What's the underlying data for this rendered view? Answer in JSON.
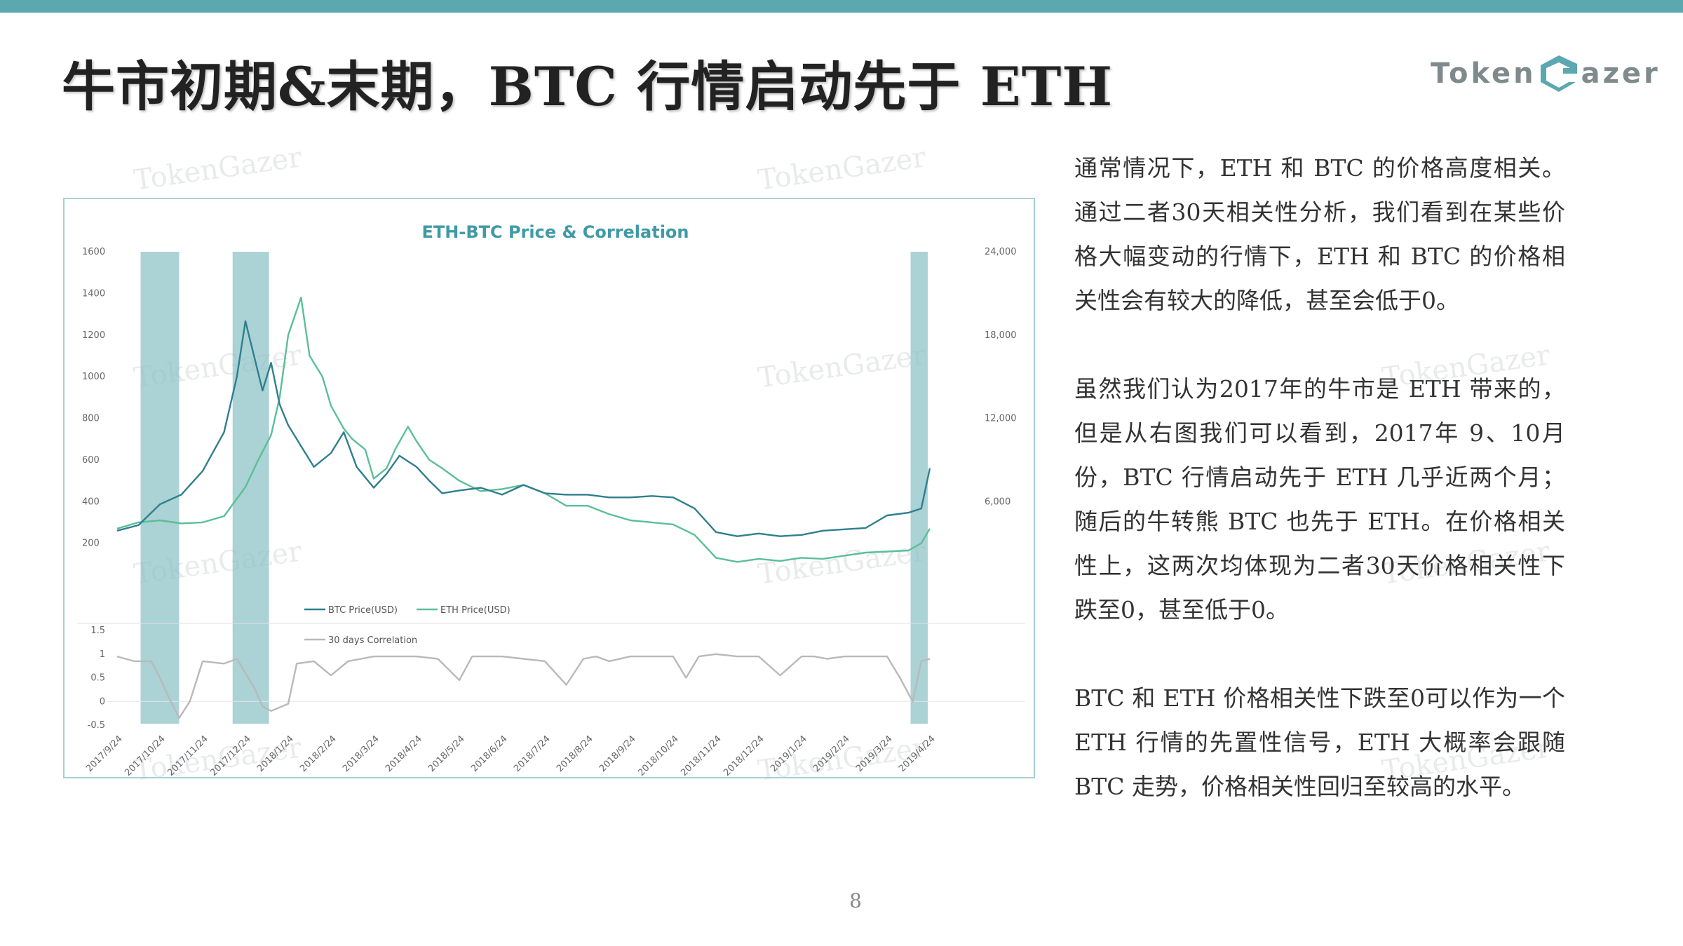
{
  "page": {
    "title": "牛市初期&末期，BTC 行情启动先于 ETH",
    "logo_left": "Token",
    "logo_right": "azer",
    "watermark": "TokenGazer",
    "page_number": "8",
    "colors": {
      "accent_bar": "#5ba8b0",
      "btc": "#2e7f8f",
      "eth": "#5bbf97",
      "corr": "#b9b9b9",
      "band": "#8fc3c7"
    }
  },
  "text": {
    "paragraphs": [
      "通常情况下，ETH 和 BTC 的价格高度相关。通过二者30天相关性分析，我们看到在某些价格大幅变动的行情下，ETH 和 BTC 的价格相关性会有较大的降低，甚至会低于0。",
      "虽然我们认为2017年的牛市是 ETH 带来的，但是从右图我们可以看到，2017年 9、10月份，BTC 行情启动先于 ETH 几乎近两个月；随后的牛转熊 BTC 也先于 ETH。在价格相关性上，这两次均体现为二者30天价格相关性下跌至0，甚至低于0。",
      "BTC 和 ETH 价格相关性下跌至0可以作为一个 ETH 行情的先置性信号，ETH 大概率会跟随 BTC 走势，价格相关性回归至较高的水平。"
    ]
  },
  "chart_data": {
    "type": "line",
    "title": "ETH-BTC Price & Correlation",
    "x_tick_labels": [
      "2017/9/24",
      "2017/10/24",
      "2017/11/24",
      "2017/12/24",
      "2018/1/24",
      "2018/2/24",
      "2018/3/24",
      "2018/4/24",
      "2018/5/24",
      "2018/6/24",
      "2018/7/24",
      "2018/8/24",
      "2018/9/24",
      "2018/10/24",
      "2018/11/24",
      "2018/12/24",
      "2019/1/24",
      "2019/2/24",
      "2019/3/24",
      "2019/4/24"
    ],
    "y_left_ticks": [
      "1600",
      "1400",
      "1200",
      "1000",
      "800",
      "600",
      "400",
      "200"
    ],
    "y_right_ticks": [
      "24,000",
      "18,000",
      "12,000",
      "6,000"
    ],
    "y_corr_ticks": [
      "1.5",
      "1",
      "0.5",
      "0",
      "-0.5"
    ],
    "ylim_left": [
      0,
      1600
    ],
    "ylim_right": [
      0,
      24000
    ],
    "ylim_corr": [
      -0.5,
      1.5
    ],
    "legend": [
      "BTC Price(USD)",
      "ETH Price(USD)",
      "30 days Correlation"
    ],
    "highlight_ranges": [
      [
        0.55,
        1.45
      ],
      [
        2.7,
        3.55
      ],
      [
        18.55,
        18.95
      ]
    ],
    "series": [
      {
        "name": "ETH Price(USD)",
        "axis": "left",
        "x": [
          0,
          0.5,
          1,
          1.5,
          2,
          2.5,
          3,
          3.3,
          3.6,
          3.8,
          4,
          4.3,
          4.5,
          4.8,
          5,
          5.3,
          5.5,
          5.8,
          6,
          6.3,
          6.5,
          6.8,
          7,
          7.3,
          7.6,
          8,
          8.5,
          9,
          9.5,
          10,
          10.5,
          11,
          11.5,
          12,
          12.5,
          13,
          13.5,
          14,
          14.5,
          15,
          15.5,
          16,
          16.5,
          17,
          17.5,
          18,
          18.5,
          18.8,
          19
        ],
        "y": [
          270,
          300,
          310,
          295,
          300,
          330,
          470,
          600,
          720,
          900,
          1200,
          1380,
          1100,
          1000,
          860,
          750,
          700,
          650,
          510,
          560,
          650,
          760,
          690,
          600,
          560,
          500,
          450,
          460,
          480,
          440,
          380,
          380,
          340,
          310,
          300,
          290,
          240,
          130,
          110,
          125,
          115,
          130,
          125,
          140,
          155,
          160,
          165,
          200,
          270
        ]
      },
      {
        "name": "BTC Price(USD)",
        "axis": "right",
        "x": [
          0,
          0.5,
          1,
          1.5,
          2,
          2.5,
          2.8,
          3,
          3.2,
          3.4,
          3.6,
          3.8,
          4,
          4.3,
          4.6,
          5,
          5.3,
          5.6,
          6,
          6.3,
          6.6,
          7,
          7.3,
          7.6,
          8,
          8.5,
          9,
          9.5,
          10,
          10.5,
          11,
          11.5,
          12,
          12.5,
          13,
          13.5,
          14,
          14.5,
          15,
          15.5,
          16,
          16.5,
          17,
          17.5,
          18,
          18.5,
          18.8,
          19
        ],
        "y": [
          3900,
          4300,
          5800,
          6500,
          8200,
          11000,
          15000,
          19000,
          16500,
          14000,
          16000,
          13000,
          11500,
          10000,
          8500,
          9500,
          11000,
          8500,
          7000,
          8000,
          9300,
          8500,
          7500,
          6600,
          6800,
          7000,
          6500,
          7200,
          6600,
          6500,
          6500,
          6300,
          6300,
          6400,
          6300,
          5500,
          3800,
          3500,
          3700,
          3500,
          3600,
          3900,
          4000,
          4100,
          5000,
          5200,
          5500,
          8400
        ]
      },
      {
        "name": "30 days Correlation",
        "axis": "corr",
        "x": [
          0,
          0.4,
          0.8,
          1.0,
          1.2,
          1.45,
          1.7,
          2.0,
          2.5,
          2.8,
          3.0,
          3.2,
          3.4,
          3.6,
          4.0,
          4.2,
          4.6,
          5,
          5.4,
          5.7,
          6.0,
          6.5,
          7.0,
          7.5,
          8.0,
          8.3,
          8.6,
          9.0,
          9.5,
          10,
          10.5,
          10.9,
          11.2,
          11.5,
          12,
          12.5,
          13,
          13.3,
          13.6,
          14,
          14.5,
          15,
          15.5,
          16,
          16.3,
          16.6,
          17,
          17.5,
          18,
          18.3,
          18.6,
          18.8,
          19
        ],
        "y": [
          0.95,
          0.85,
          0.85,
          0.5,
          0.1,
          -0.35,
          0.0,
          0.85,
          0.8,
          0.9,
          0.6,
          0.3,
          -0.1,
          -0.2,
          -0.05,
          0.8,
          0.85,
          0.55,
          0.85,
          0.9,
          0.95,
          0.95,
          0.95,
          0.9,
          0.45,
          0.95,
          0.95,
          0.95,
          0.9,
          0.85,
          0.35,
          0.9,
          0.95,
          0.85,
          0.95,
          0.95,
          0.95,
          0.5,
          0.95,
          1.0,
          0.95,
          0.95,
          0.55,
          0.95,
          0.95,
          0.9,
          0.95,
          0.95,
          0.95,
          0.5,
          0.0,
          0.85,
          0.9
        ]
      }
    ]
  }
}
